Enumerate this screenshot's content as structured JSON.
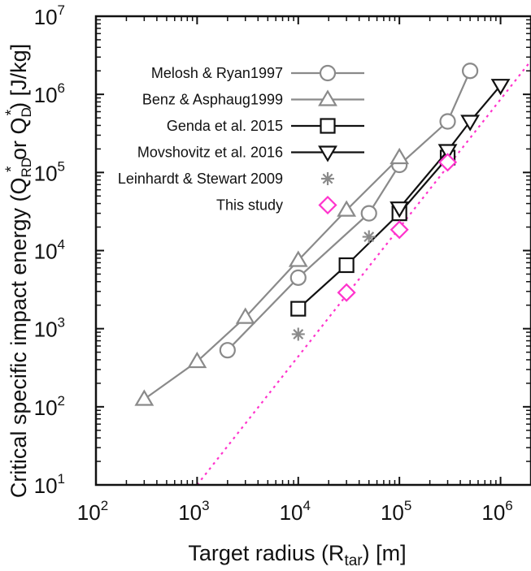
{
  "chart_data": {
    "type": "scatter",
    "xscale": "log",
    "yscale": "log",
    "xlim": [
      100,
      2000000
    ],
    "ylim": [
      10,
      10000000
    ],
    "xlabel": {
      "text": "Target radius (R",
      "sub": "tar",
      "suffix": ") [m]"
    },
    "ylabel": {
      "text": "Critical specific impact energy (Q",
      "sub1": "RD",
      "sup1": "*",
      "mid": " or Q",
      "sub2": "D",
      "sup2": "*",
      "suffix": ") [J/kg]"
    },
    "xticks": [
      {
        "value": 100,
        "base": "10",
        "exp": "2"
      },
      {
        "value": 1000,
        "base": "10",
        "exp": "3"
      },
      {
        "value": 10000,
        "base": "10",
        "exp": "4"
      },
      {
        "value": 100000,
        "base": "10",
        "exp": "5"
      },
      {
        "value": 1000000,
        "base": "10",
        "exp": "6"
      }
    ],
    "yticks": [
      {
        "value": 10,
        "base": "10",
        "exp": "1"
      },
      {
        "value": 100,
        "base": "10",
        "exp": "2"
      },
      {
        "value": 1000,
        "base": "10",
        "exp": "3"
      },
      {
        "value": 10000,
        "base": "10",
        "exp": "4"
      },
      {
        "value": 100000,
        "base": "10",
        "exp": "5"
      },
      {
        "value": 1000000,
        "base": "10",
        "exp": "6"
      },
      {
        "value": 10000000,
        "base": "10",
        "exp": "7"
      }
    ],
    "series": [
      {
        "name": "Melosh & Ryan1997",
        "marker": "circle",
        "color": "#8a8a8a",
        "line": true,
        "x": [
          2000,
          10000,
          50000,
          100000,
          300000,
          500000
        ],
        "y": [
          530,
          4500,
          30000,
          125000,
          450000,
          2000000
        ]
      },
      {
        "name": "Benz & Asphaug1999",
        "marker": "triangle-up",
        "color": "#8a8a8a",
        "line": true,
        "x": [
          300,
          1000,
          3000,
          10000,
          30000,
          100000
        ],
        "y": [
          125,
          380,
          1400,
          7500,
          33000,
          155000
        ]
      },
      {
        "name": "Genda et al. 2015",
        "marker": "square",
        "color": "#111111",
        "line": true,
        "x": [
          10000,
          30000,
          100000,
          300000
        ],
        "y": [
          1800,
          6500,
          30000,
          155000
        ]
      },
      {
        "name": "Movshovitz et al. 2016",
        "marker": "triangle-down",
        "color": "#111111",
        "line": true,
        "x": [
          100000,
          300000,
          500000,
          1000000
        ],
        "y": [
          35000,
          190000,
          450000,
          1300000
        ]
      },
      {
        "name": "Leinhardt & Stewart 2009",
        "marker": "asterisk",
        "color": "#8a8a8a",
        "line": false,
        "x": [
          10000,
          50000
        ],
        "y": [
          850,
          15000
        ]
      },
      {
        "name": "This study",
        "marker": "diamond",
        "color": "#ff33cc",
        "line": false,
        "x": [
          30000,
          100000,
          300000
        ],
        "y": [
          2900,
          18500,
          135000
        ]
      }
    ],
    "fit_line": {
      "style": "dotted",
      "color": "#ff33cc",
      "x": [
        1000,
        2000000
      ],
      "y": [
        10,
        2700000
      ]
    }
  }
}
